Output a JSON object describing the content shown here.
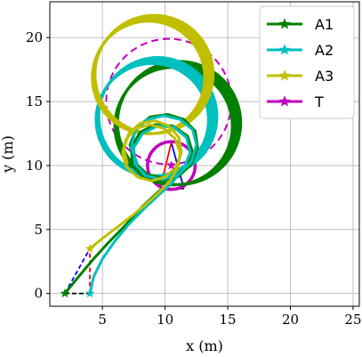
{
  "chart_data": {
    "type": "line",
    "title": "",
    "xlabel": "x (m)",
    "ylabel": "y (m)",
    "xlim": [
      0.8,
      25.5
    ],
    "ylim": [
      -1.0,
      22.8
    ],
    "xticks": [
      5,
      10,
      15,
      20,
      25
    ],
    "yticks": [
      0,
      5,
      10,
      15,
      20
    ],
    "grid": true,
    "legend_position": "top-right",
    "series": [
      {
        "name": "A1",
        "color": "#008000",
        "marker": "star",
        "start": [
          2.0,
          0.0
        ],
        "points": [
          [
            2.0,
            0.0
          ],
          [
            3.0,
            1.2
          ],
          [
            4.2,
            2.6
          ],
          [
            5.5,
            4.0
          ],
          [
            6.9,
            5.4
          ],
          [
            8.2,
            6.8
          ],
          [
            9.4,
            7.9
          ],
          [
            10.6,
            8.9
          ],
          [
            11.6,
            9.9
          ],
          [
            12.2,
            11.0
          ],
          [
            11.8,
            12.3
          ],
          [
            10.6,
            13.1
          ],
          [
            9.2,
            13.2
          ],
          [
            8.0,
            12.6
          ],
          [
            7.3,
            11.4
          ],
          [
            7.4,
            10.0
          ],
          [
            8.3,
            9.0
          ],
          [
            9.6,
            8.7
          ],
          [
            11.0,
            9.1
          ],
          [
            12.1,
            10.1
          ],
          [
            12.6,
            11.4
          ],
          [
            12.4,
            12.7
          ],
          [
            11.5,
            13.6
          ],
          [
            10.2,
            14.0
          ],
          [
            8.8,
            13.8
          ],
          [
            7.7,
            12.9
          ],
          [
            7.2,
            11.6
          ],
          [
            7.6,
            10.2
          ],
          [
            8.6,
            9.3
          ],
          [
            10.0,
            9.0
          ]
        ]
      },
      {
        "name": "A2",
        "color": "#00bfbf",
        "marker": "star",
        "start": [
          4.0,
          0.0
        ],
        "points": [
          [
            4.0,
            0.0
          ],
          [
            4.3,
            1.3
          ],
          [
            5.0,
            2.7
          ],
          [
            6.0,
            4.1
          ],
          [
            7.1,
            5.4
          ],
          [
            8.3,
            6.6
          ],
          [
            9.5,
            7.7
          ],
          [
            10.6,
            8.7
          ],
          [
            11.5,
            9.8
          ],
          [
            12.0,
            11.0
          ],
          [
            11.7,
            12.2
          ],
          [
            10.7,
            13.0
          ],
          [
            9.4,
            13.1
          ],
          [
            8.2,
            12.5
          ],
          [
            7.5,
            11.4
          ],
          [
            7.6,
            10.1
          ],
          [
            8.5,
            9.2
          ],
          [
            9.8,
            8.9
          ],
          [
            11.1,
            9.3
          ],
          [
            12.1,
            10.3
          ],
          [
            12.5,
            11.6
          ],
          [
            12.2,
            12.8
          ],
          [
            11.2,
            13.6
          ],
          [
            9.9,
            13.9
          ],
          [
            8.6,
            13.6
          ],
          [
            7.6,
            12.7
          ],
          [
            7.3,
            11.4
          ],
          [
            7.8,
            10.1
          ]
        ]
      },
      {
        "name": "A3",
        "color": "#bfbf00",
        "marker": "star",
        "start": [
          4.0,
          3.5
        ],
        "points": [
          [
            4.0,
            3.5
          ],
          [
            5.0,
            4.3
          ],
          [
            6.2,
            5.2
          ],
          [
            7.4,
            6.1
          ],
          [
            8.5,
            7.0
          ],
          [
            9.5,
            7.9
          ],
          [
            10.4,
            8.8
          ],
          [
            11.0,
            9.8
          ],
          [
            11.2,
            11.0
          ],
          [
            10.8,
            12.1
          ],
          [
            9.9,
            12.9
          ],
          [
            8.8,
            13.2
          ],
          [
            7.7,
            12.9
          ],
          [
            6.9,
            12.1
          ],
          [
            6.6,
            11.0
          ],
          [
            6.9,
            9.9
          ],
          [
            7.8,
            9.1
          ],
          [
            8.9,
            8.8
          ],
          [
            10.0,
            9.1
          ],
          [
            10.9,
            9.9
          ],
          [
            11.3,
            11.0
          ],
          [
            11.1,
            12.2
          ],
          [
            10.3,
            13.1
          ],
          [
            9.2,
            13.5
          ],
          [
            8.0,
            13.3
          ],
          [
            7.1,
            12.5
          ],
          [
            6.7,
            11.3
          ],
          [
            7.0,
            10.1
          ]
        ]
      },
      {
        "name": "T",
        "color": "#bf00bf",
        "marker": "star",
        "start": [
          10.5,
          10.0
        ],
        "points": [
          [
            10.5,
            10.0
          ]
        ]
      }
    ],
    "annotations": [
      {
        "type": "dashed-line",
        "color": "#000000",
        "from": [
          2.0,
          0.0
        ],
        "to": [
          4.0,
          0.0
        ]
      },
      {
        "type": "dashed-line",
        "color": "#0000ff",
        "from": [
          2.0,
          0.0
        ],
        "to": [
          4.0,
          3.5
        ]
      },
      {
        "type": "dashed-line",
        "color": "#ff0000",
        "from": [
          4.0,
          0.0
        ],
        "to": [
          4.0,
          3.5
        ]
      },
      {
        "type": "solid-line",
        "color": "#0000ff",
        "from": [
          10.5,
          11.8
        ],
        "to": [
          11.5,
          8.2
        ]
      },
      {
        "type": "solid-line",
        "color": "#ff0000",
        "from": [
          10.5,
          11.8
        ],
        "to": [
          9.6,
          8.2
        ]
      },
      {
        "type": "solid-line",
        "color": "#000000",
        "from": [
          9.6,
          8.2
        ],
        "to": [
          11.5,
          8.2
        ]
      },
      {
        "type": "circle",
        "color": "#bf00bf",
        "center": [
          10.5,
          10.0
        ],
        "radius": 1.9,
        "style": "solid"
      },
      {
        "type": "circle",
        "color": "#bf00bf",
        "center": [
          10.3,
          15.0
        ],
        "radius": 5.0,
        "style": "dashed"
      },
      {
        "type": "ring",
        "color": "#008000",
        "center": [
          10.9,
          13.2
        ],
        "radius": 4.8,
        "style": "solid"
      },
      {
        "type": "ring",
        "color": "#00bfbf",
        "center": [
          9.2,
          13.7
        ],
        "radius": 4.6,
        "style": "solid"
      },
      {
        "type": "ring",
        "color": "#bfbf00",
        "center": [
          8.9,
          17.0
        ],
        "radius": 4.6,
        "style": "solid"
      }
    ]
  }
}
